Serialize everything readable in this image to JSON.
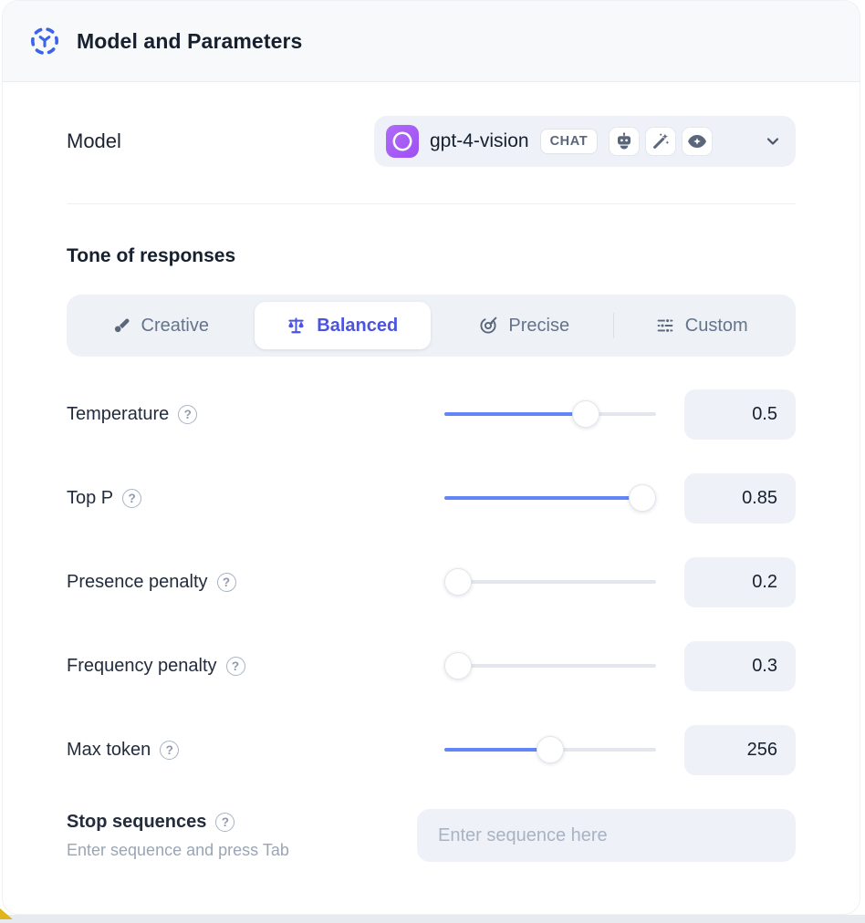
{
  "header": {
    "title": "Model and Parameters",
    "icon": "model-hub-icon"
  },
  "model": {
    "label": "Model",
    "selected_model": "gpt-4-vision",
    "badge": "CHAT",
    "capability_icons": [
      "robot-icon",
      "magic-wand-icon",
      "vision-eye-icon"
    ],
    "provider_icon": "openai-logo"
  },
  "tone": {
    "heading": "Tone of responses",
    "tabs": [
      {
        "label": "Creative",
        "icon": "paintbrush-icon",
        "active": false
      },
      {
        "label": "Balanced",
        "icon": "balance-scale-icon",
        "active": true
      },
      {
        "label": "Precise",
        "icon": "target-arrow-icon",
        "active": false
      },
      {
        "label": "Custom",
        "icon": "sliders-icon",
        "active": false
      }
    ]
  },
  "parameters": {
    "rows": [
      {
        "label": "Temperature",
        "value": "0.5",
        "fill_percent": 67
      },
      {
        "label": "Top P",
        "value": "0.85",
        "fill_percent": 97
      },
      {
        "label": "Presence penalty",
        "value": "0.2",
        "fill_percent": 0
      },
      {
        "label": "Frequency penalty",
        "value": "0.3",
        "fill_percent": 0
      },
      {
        "label": "Max token",
        "value": "256",
        "fill_percent": 50
      }
    ]
  },
  "stop_sequences": {
    "label": "Stop sequences",
    "helper": "Enter sequence and press Tab",
    "placeholder": "Enter sequence here",
    "current_value": ""
  },
  "ui": {
    "help_icon_glyph": "?"
  },
  "colors": {
    "accent": "#4B53E2",
    "slider": "#6286F7",
    "logo-purple": "#A45CF6",
    "header-bg": "#F7F9FB",
    "field-bg": "#EEF1F7",
    "corner-accent": "#E0B41E"
  }
}
